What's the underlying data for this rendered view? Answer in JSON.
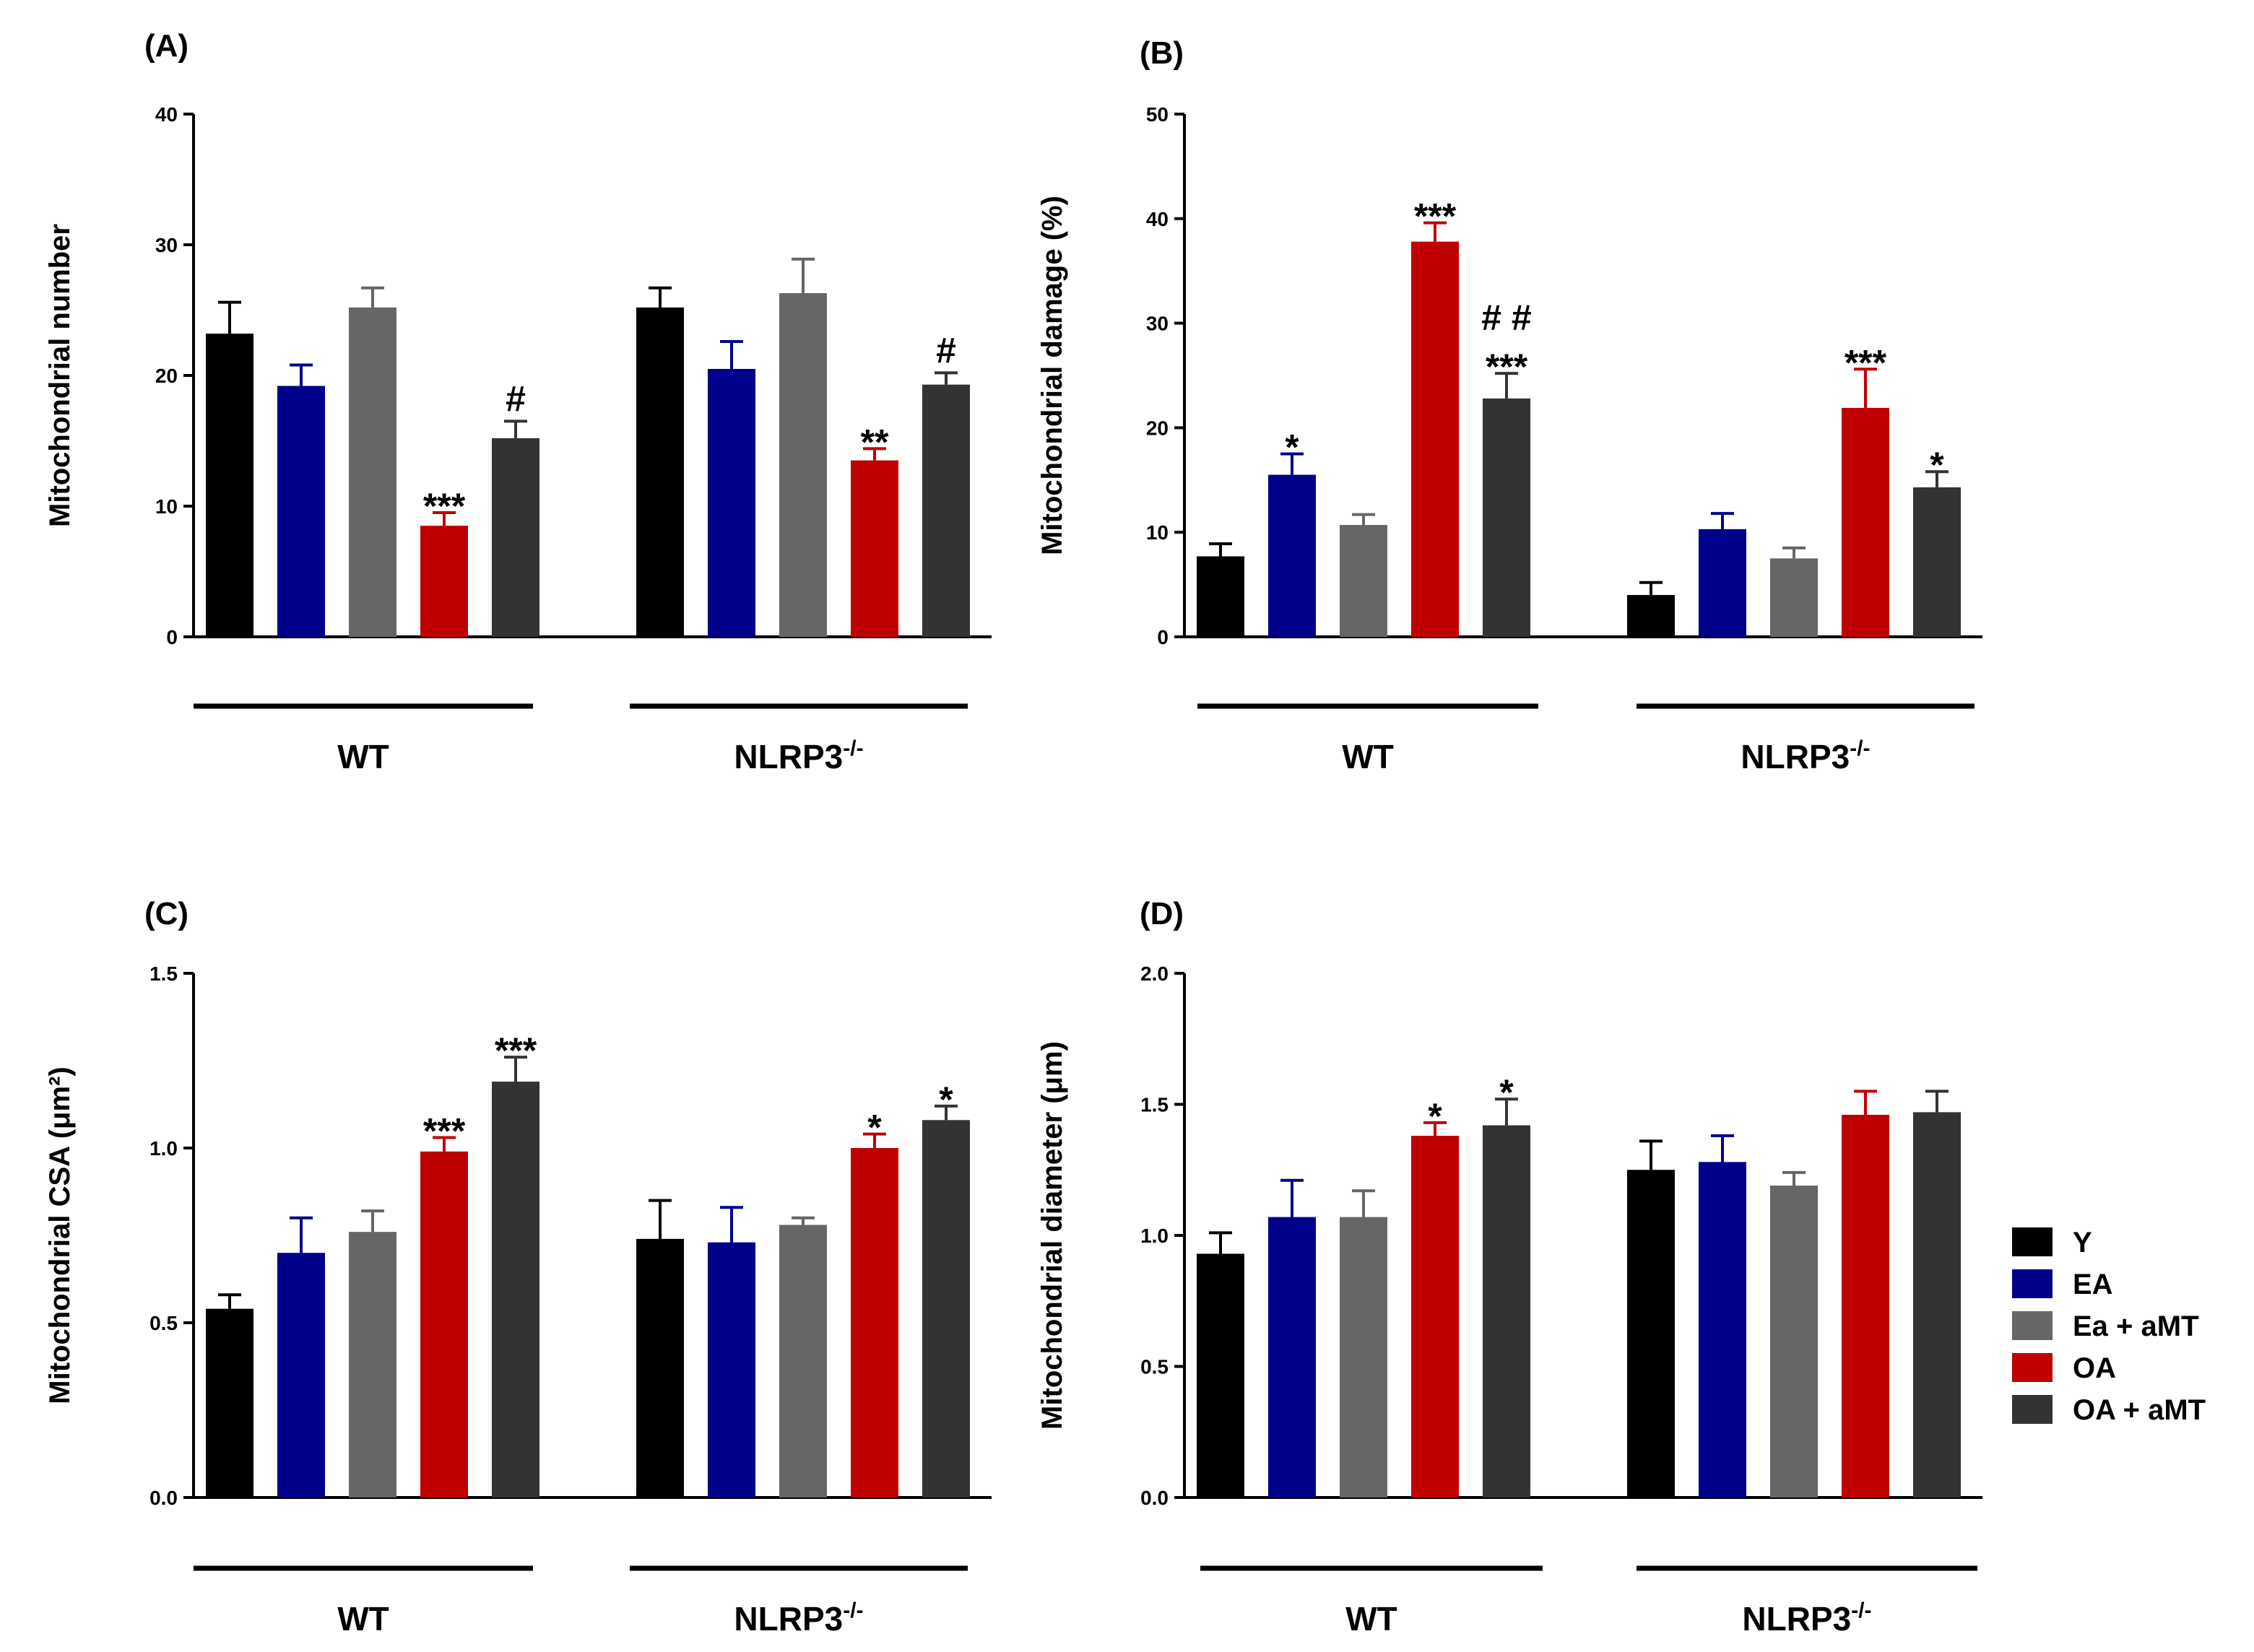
{
  "colors": {
    "Y": "#000000",
    "EA": "#00008b",
    "Ea + aMT": "#666666",
    "OA": "#c00000",
    "OA + aMT": "#333333"
  },
  "legend": [
    "Y",
    "EA",
    "Ea + aMT",
    "OA",
    "OA + aMT"
  ],
  "chart_data": [
    {
      "panel": "(A)",
      "type": "bar",
      "ylabel": "Mitochondrial number",
      "ylim": [
        0,
        40
      ],
      "yticks": [
        "0",
        "10",
        "20",
        "30",
        "40"
      ],
      "groups": [
        {
          "name": "WT",
          "sup": "",
          "values": [
            23.2,
            19.2,
            25.2,
            8.5,
            15.2
          ],
          "errors": [
            2.4,
            1.6,
            1.5,
            1.0,
            1.3
          ],
          "sig": [
            "",
            "",
            "",
            "***",
            "#"
          ]
        },
        {
          "name": "NLRP3",
          "sup": "-/-",
          "values": [
            25.2,
            20.5,
            26.3,
            13.5,
            19.3
          ],
          "errors": [
            1.5,
            2.1,
            2.6,
            0.9,
            0.9
          ],
          "sig": [
            "",
            "",
            "",
            "**",
            "#"
          ]
        }
      ]
    },
    {
      "panel": "(B)",
      "type": "bar",
      "ylabel": "Mitochondrial damage (%)",
      "ylim": [
        0,
        50
      ],
      "yticks": [
        "0",
        "10",
        "20",
        "30",
        "40",
        "50"
      ],
      "groups": [
        {
          "name": "WT",
          "sup": "",
          "values": [
            7.7,
            15.5,
            10.7,
            37.8,
            22.8
          ],
          "errors": [
            1.2,
            2.0,
            1.0,
            1.8,
            2.4
          ],
          "sig": [
            "",
            "*",
            "",
            "***",
            "***"
          ],
          "sig2": [
            "",
            "",
            "",
            "",
            "# #"
          ]
        },
        {
          "name": "NLRP3",
          "sup": "-/-",
          "values": [
            4.0,
            10.3,
            7.5,
            21.9,
            14.3
          ],
          "errors": [
            1.2,
            1.5,
            1.0,
            3.7,
            1.5
          ],
          "sig": [
            "",
            "",
            "",
            "***",
            "*"
          ]
        }
      ]
    },
    {
      "panel": "(C)",
      "type": "bar",
      "ylabel": "Mitochondrial CSA (μm²)",
      "ylim": [
        0,
        1.5
      ],
      "yticks": [
        "0.0",
        "0.5",
        "1.0",
        "1.5"
      ],
      "groups": [
        {
          "name": "WT",
          "sup": "",
          "values": [
            0.54,
            0.7,
            0.76,
            0.99,
            1.19
          ],
          "errors": [
            0.04,
            0.1,
            0.06,
            0.04,
            0.07
          ],
          "sig": [
            "",
            "",
            "",
            "***",
            "***"
          ]
        },
        {
          "name": "NLRP3",
          "sup": "-/-",
          "values": [
            0.74,
            0.73,
            0.78,
            1.0,
            1.08
          ],
          "errors": [
            0.11,
            0.1,
            0.02,
            0.04,
            0.04
          ],
          "sig": [
            "",
            "",
            "",
            "*",
            "*"
          ]
        }
      ]
    },
    {
      "panel": "(D)",
      "type": "bar",
      "ylabel": "Mitochondrial diameter (μm)",
      "ylim": [
        0,
        2.0
      ],
      "yticks": [
        "0.0",
        "0.5",
        "1.0",
        "1.5",
        "2.0"
      ],
      "groups": [
        {
          "name": "WT",
          "sup": "",
          "values": [
            0.93,
            1.07,
            1.07,
            1.38,
            1.42
          ],
          "errors": [
            0.08,
            0.14,
            0.1,
            0.05,
            0.1
          ],
          "sig": [
            "",
            "",
            "",
            "*",
            "*"
          ]
        },
        {
          "name": "NLRP3",
          "sup": "-/-",
          "values": [
            1.25,
            1.28,
            1.19,
            1.46,
            1.47
          ],
          "errors": [
            0.11,
            0.1,
            0.05,
            0.09,
            0.08
          ],
          "sig": [
            "",
            "",
            "",
            "",
            ""
          ]
        }
      ]
    }
  ]
}
